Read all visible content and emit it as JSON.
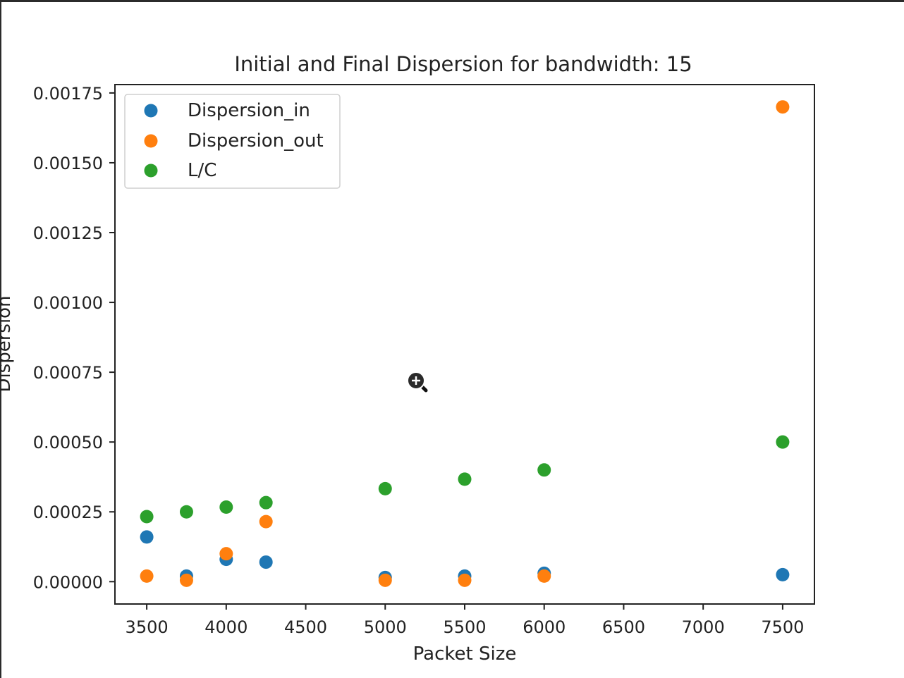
{
  "chart_data": {
    "type": "scatter",
    "title": "Initial and Final Dispersion for bandwidth: 15",
    "xlabel": "Packet Size",
    "ylabel": "Dispersion",
    "xlim": [
      3300,
      7700
    ],
    "ylim": [
      -8e-05,
      0.00178
    ],
    "xticks": [
      3500,
      4000,
      4500,
      5000,
      5500,
      6000,
      6500,
      7000,
      7500
    ],
    "yticks": [
      0.0,
      0.00025,
      0.0005,
      0.00075,
      0.001,
      0.00125,
      0.0015,
      0.00175
    ],
    "xtick_labels": [
      "3500",
      "4000",
      "4500",
      "5000",
      "5500",
      "6000",
      "6500",
      "7000",
      "7500"
    ],
    "ytick_labels": [
      "0.00000",
      "0.00025",
      "0.00050",
      "0.00075",
      "0.00100",
      "0.00125",
      "0.00150",
      "0.00175"
    ],
    "grid": false,
    "legend_position": "top-left",
    "series": [
      {
        "name": "Dispersion_in",
        "color": "#1f77b4",
        "x": [
          3500,
          3750,
          4000,
          4250,
          5000,
          5500,
          6000,
          7500
        ],
        "y": [
          0.00016,
          2e-05,
          8e-05,
          7e-05,
          1.5e-05,
          2e-05,
          3e-05,
          2.5e-05
        ]
      },
      {
        "name": "Dispersion_out",
        "color": "#ff7f0e",
        "x": [
          3500,
          3750,
          4000,
          4250,
          5000,
          5500,
          6000,
          7500
        ],
        "y": [
          2e-05,
          5e-06,
          0.0001,
          0.000215,
          5e-06,
          5e-06,
          2e-05,
          0.0017
        ]
      },
      {
        "name": "L/C",
        "color": "#2ca02c",
        "x": [
          3500,
          3750,
          4000,
          4250,
          5000,
          5500,
          6000,
          7500
        ],
        "y": [
          0.000233,
          0.00025,
          0.000267,
          0.000283,
          0.000333,
          0.000367,
          0.0004,
          0.0005
        ]
      }
    ]
  }
}
